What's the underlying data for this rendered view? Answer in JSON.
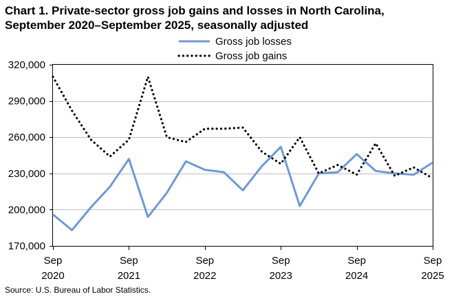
{
  "chart_data": {
    "type": "line",
    "title_line1": "Chart 1. Private-sector gross job gains and losses in North Carolina,",
    "title_line2": "September 2020–September 2025, seasonally adjusted",
    "source": "Source: U.S. Bureau of Labor Statistics.",
    "legend_placement": "top-center",
    "grid": true,
    "ylim": [
      170000,
      320000
    ],
    "y_ticks": [
      "320,000",
      "290,000",
      "260,000",
      "230,000",
      "200,000",
      "170,000"
    ],
    "y_tick_values": [
      320000,
      290000,
      260000,
      230000,
      200000,
      170000
    ],
    "x": [
      "Sep 2020",
      "Dec 2020",
      "Mar 2021",
      "Jun 2021",
      "Sep 2021",
      "Dec 2021",
      "Mar 2022",
      "Jun 2022",
      "Sep 2022",
      "Dec 2022",
      "Mar 2023",
      "Jun 2023",
      "Sep 2023",
      "Dec 2023",
      "Mar 2024",
      "Jun 2024",
      "Sep 2024",
      "Dec 2024",
      "Mar 2025",
      "Jun 2025",
      "Sep 2025"
    ],
    "x_ticks": [
      {
        "month": "Sep",
        "year": "2020",
        "index": 0
      },
      {
        "month": "Sep",
        "year": "2021",
        "index": 4
      },
      {
        "month": "Sep",
        "year": "2022",
        "index": 8
      },
      {
        "month": "Sep",
        "year": "2023",
        "index": 12
      },
      {
        "month": "Sep",
        "year": "2024",
        "index": 16
      },
      {
        "month": "Sep",
        "year": "2025",
        "index": 20
      }
    ],
    "series": [
      {
        "name": "Gross job losses",
        "color": "#6f98d2",
        "style": "solid",
        "values": [
          196000,
          183000,
          202000,
          219000,
          242000,
          194000,
          214000,
          240000,
          233000,
          231000,
          216000,
          236000,
          252000,
          203000,
          230000,
          231000,
          246000,
          232000,
          230000,
          229000,
          239000
        ]
      },
      {
        "name": "Gross job gains",
        "color": "#000000",
        "style": "dotted",
        "values": [
          310000,
          282000,
          258000,
          244000,
          258000,
          310000,
          260000,
          256000,
          267000,
          267000,
          268000,
          248000,
          238000,
          260000,
          230000,
          237000,
          229000,
          255000,
          228000,
          235000,
          226000
        ]
      }
    ]
  }
}
